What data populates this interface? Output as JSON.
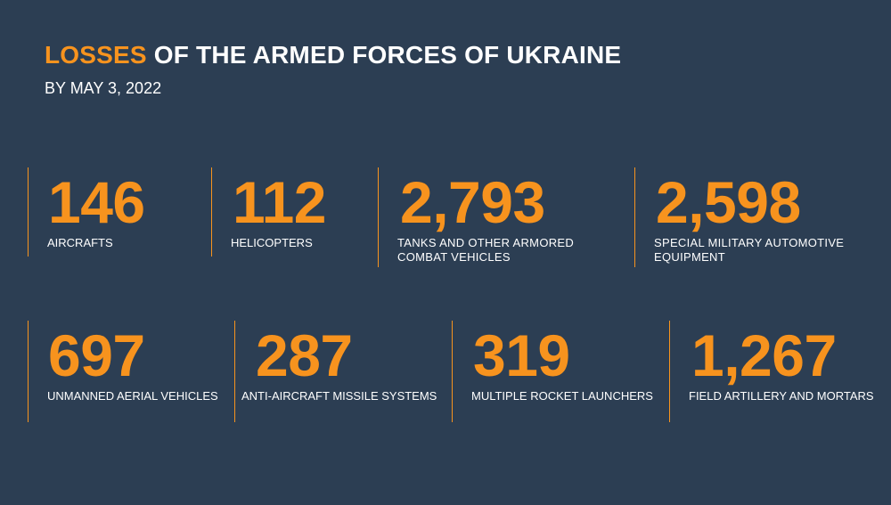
{
  "header": {
    "title_accent": "LOSSES",
    "title_rest": " OF THE ARMED FORCES OF UKRAINE",
    "subtitle": "BY MAY 3, 2022"
  },
  "colors": {
    "background": "#2c3e53",
    "accent": "#f7931e",
    "text": "#ffffff"
  },
  "stats": [
    {
      "value": "146",
      "label": "AIRCRAFTS"
    },
    {
      "value": "112",
      "label": "HELICOPTERS"
    },
    {
      "value": "2,793",
      "label": "TANKS AND OTHER ARMORED COMBAT VEHICLES"
    },
    {
      "value": "2,598",
      "label": "SPECIAL MILITARY AUTOMOTIVE EQUIPMENT"
    },
    {
      "value": "697",
      "label": "UNMANNED AERIAL VEHICLES"
    },
    {
      "value": "287",
      "label": "ANTI-AIRCRAFT MISSILE SYSTEMS"
    },
    {
      "value": "319",
      "label": "MULTIPLE ROCKET LAUNCHERS"
    },
    {
      "value": "1,267",
      "label": "FIELD ARTILLERY AND MORTARS"
    }
  ]
}
